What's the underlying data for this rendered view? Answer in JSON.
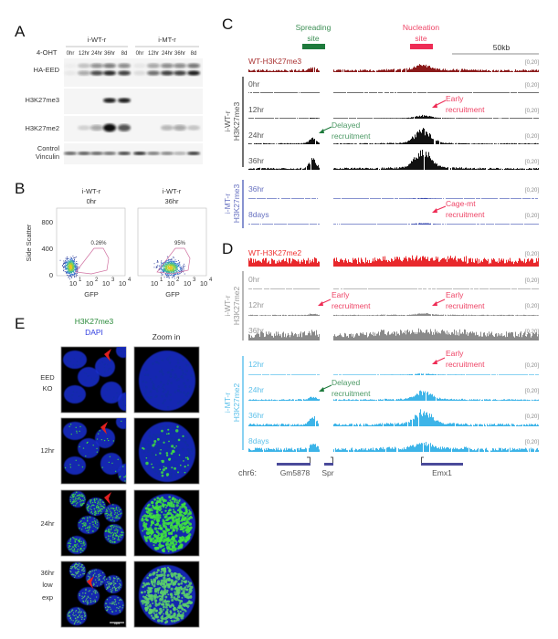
{
  "panel_a": {
    "letter": "A",
    "group_wt": "i-WT-r",
    "group_mt": "i-MT-r",
    "treatment_label": "4-OHT",
    "lanes_wt": [
      "0hr",
      "12hr",
      "24hr",
      "36hr",
      "8d"
    ],
    "lanes_mt": [
      "0hr",
      "12hr",
      "24hr",
      "36hr",
      "8d"
    ],
    "rows": [
      {
        "label": "HA-EED",
        "wt": [
          0.05,
          0.35,
          0.75,
          0.9,
          0.8
        ],
        "mt": [
          0.1,
          0.6,
          0.8,
          0.8,
          0.95
        ]
      },
      {
        "label": "H3K27me3",
        "wt": [
          0,
          0,
          0,
          0.95,
          0.95
        ],
        "mt": [
          0,
          0,
          0,
          0,
          0
        ]
      },
      {
        "label": "H3K27me2",
        "wt": [
          0,
          0.15,
          0.35,
          1,
          0.7
        ],
        "mt": [
          0,
          0,
          0.25,
          0.35,
          0.2
        ]
      },
      {
        "label": "Control",
        "label2": "Vinculin",
        "wt": [
          0.7,
          0.75,
          0.7,
          0.65,
          0.85
        ],
        "mt": [
          0.95,
          0.6,
          0.55,
          0.35,
          0.9
        ]
      }
    ]
  },
  "panel_b": {
    "letter": "B",
    "ylabel": "Side Scatter",
    "xlabel": "GFP",
    "yticks": [
      "800",
      "400",
      "0"
    ],
    "xticks": [
      "10",
      "10",
      "10",
      "10"
    ],
    "xtick_exp": [
      "1",
      "2",
      "3",
      "4"
    ],
    "plots": [
      {
        "title1": "i-WT-r",
        "title2": "0hr",
        "gate_percent": "0.26%"
      },
      {
        "title1": "i-WT-r",
        "title2": "36hr",
        "gate_percent": "95%"
      }
    ]
  },
  "panel_c": {
    "letter": "C",
    "spreading_label1": "Spreading",
    "spreading_label2": "site",
    "nucleation_label1": "Nucleation",
    "nucleation_label2": "site",
    "scale_label": "50kb",
    "group_wt": "i-WT-r",
    "group_wt2": "H3K27me3",
    "group_mt": "i-MT-r",
    "group_mt2": "H3K27me3",
    "tracks": [
      {
        "label": "WT-H3K27me3",
        "range": "[0,20]",
        "color": "#8b1a1a",
        "background": 3,
        "spreading": 5,
        "nucleation": 8
      },
      {
        "label": "0hr",
        "range": "[0,20]",
        "color": "#111111",
        "background": 0.3,
        "spreading": 0,
        "nucleation": 0
      },
      {
        "label": "12hr",
        "range": "[0,20]",
        "color": "#111111",
        "background": 0.4,
        "spreading": 0.5,
        "nucleation": 3
      },
      {
        "label": "24hr",
        "range": "[0,20]",
        "color": "#111111",
        "background": 0.8,
        "spreading": 6,
        "nucleation": 14
      },
      {
        "label": "36hr",
        "range": "[0,20]",
        "color": "#111111",
        "background": 1.5,
        "spreading": 10,
        "nucleation": 18
      },
      {
        "label": "36hr",
        "range": "[0,20]",
        "color": "#3a4bb0",
        "background": 0.3,
        "spreading": 0,
        "nucleation": 0.6
      },
      {
        "label": "8days",
        "range": "[0,20]",
        "color": "#3a4bb0",
        "background": 0.3,
        "spreading": 0,
        "nucleation": 1.2
      }
    ],
    "annotations": [
      "Early",
      "recruitment",
      "Delayed",
      "recruitment",
      "Cage-mt",
      "recruitment"
    ]
  },
  "panel_d": {
    "letter": "D",
    "group_wt": "i-WT-r",
    "group_wt2": "H3K27me2",
    "group_mt": "i-MT-r",
    "group_mt2": "H3K27me2",
    "tracks": [
      {
        "label": "WT-H3K27me2",
        "range": "[0,20]",
        "color": "#e8282c",
        "background": 10,
        "spreading": 2,
        "nucleation": 2
      },
      {
        "label": "0hr",
        "range": "[0,20]",
        "color": "#8a8a8a",
        "background": 0.3,
        "spreading": 0,
        "nucleation": 0
      },
      {
        "label": "12hr",
        "range": "[0,20]",
        "color": "#8a8a8a",
        "background": 0.8,
        "spreading": 1.5,
        "nucleation": 1.5
      },
      {
        "label": "36hr",
        "range": "[0,20]",
        "color": "#8a8a8a",
        "background": 9,
        "spreading": 3,
        "nucleation": 2
      },
      {
        "label": "12hr",
        "range": "[0,20]",
        "color": "#3db4e8",
        "background": 0.4,
        "spreading": 0,
        "nucleation": 1.2
      },
      {
        "label": "24hr",
        "range": "[0,20]",
        "color": "#3db4e8",
        "background": 1.2,
        "spreading": 3,
        "nucleation": 8
      },
      {
        "label": "36hr",
        "range": "[0,20]",
        "color": "#3db4e8",
        "background": 2,
        "spreading": 8,
        "nucleation": 14
      },
      {
        "label": "8days",
        "range": "[0,20]",
        "color": "#3db4e8",
        "background": 3,
        "spreading": 6,
        "nucleation": 6
      }
    ],
    "annotations": [
      "Early",
      "recruitment",
      "Early",
      "recruitment",
      "Early",
      "recruitment",
      "Delayed",
      "recruitment"
    ]
  },
  "genes": {
    "chrom": "chr6:",
    "items": [
      "Gm5878",
      "Spr",
      "Emx1"
    ]
  },
  "panel_e": {
    "letter": "E",
    "stain1": "H3K27me3",
    "stain2": "DAPI",
    "zoom_label": "Zoom  in",
    "rows": [
      {
        "label": [
          "EED",
          "KO"
        ],
        "green_level": 0
      },
      {
        "label": [
          "12hr"
        ],
        "green_level": 0.08
      },
      {
        "label": [
          "24hr"
        ],
        "green_level": 0.85
      },
      {
        "label": [
          "36hr",
          "low",
          "exp"
        ],
        "green_level": 0.6
      }
    ],
    "scale_bar": "10μm"
  },
  "colors": {
    "spreading": "#1e7a3c",
    "nucleation": "#ee2c55",
    "mt_me3": "#3a4bb0",
    "mt_me2": "#3db4e8"
  }
}
